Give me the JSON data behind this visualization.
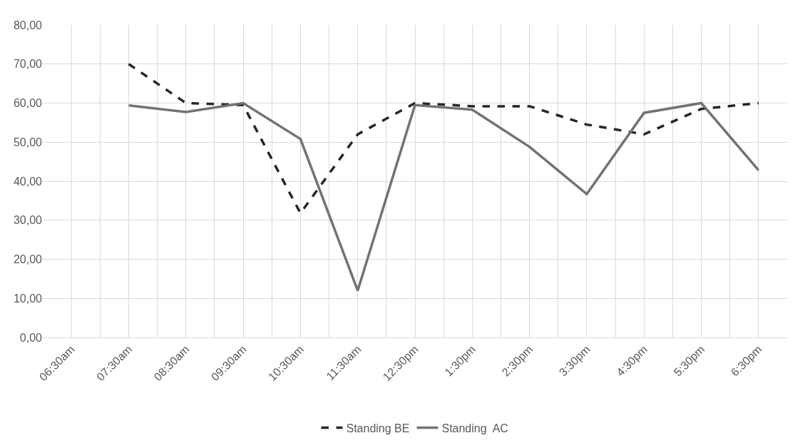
{
  "chart_data": {
    "type": "line",
    "categories": [
      "06:30am",
      "07:30am",
      "08:30am",
      "09:30am",
      "10:30am",
      "11:30am",
      "12:30pm",
      "1:30pm",
      "2:30pm",
      "3:30pm",
      "4:30pm",
      "5:30pm",
      "6:30pm"
    ],
    "series": [
      {
        "name": "Standing BE",
        "color": "#262626",
        "line_style": "dashed",
        "values": [
          null,
          70,
          60,
          59.5,
          31.8,
          52,
          60,
          59.2,
          59.2,
          54.5,
          52,
          58.5,
          60
        ]
      },
      {
        "name": "Standing  AC",
        "color": "#767171",
        "line_style": "solid",
        "values": [
          null,
          59.4,
          57.7,
          60,
          50.8,
          12,
          59.5,
          58.3,
          48.8,
          36.7,
          57.5,
          60,
          42.8
        ]
      }
    ],
    "ylim": [
      0,
      80
    ],
    "yticks": [
      {
        "value": 0,
        "label": "0,00"
      },
      {
        "value": 10,
        "label": "10,00"
      },
      {
        "value": 20,
        "label": "20,00"
      },
      {
        "value": 30,
        "label": "30,00"
      },
      {
        "value": 40,
        "label": "40,00"
      },
      {
        "value": 50,
        "label": "50,00"
      },
      {
        "value": 60,
        "label": "60,00"
      },
      {
        "value": 70,
        "label": "70,00"
      },
      {
        "value": 80,
        "label": "80,00"
      }
    ],
    "grid": true,
    "legend": "bottom",
    "marker": "none"
  }
}
